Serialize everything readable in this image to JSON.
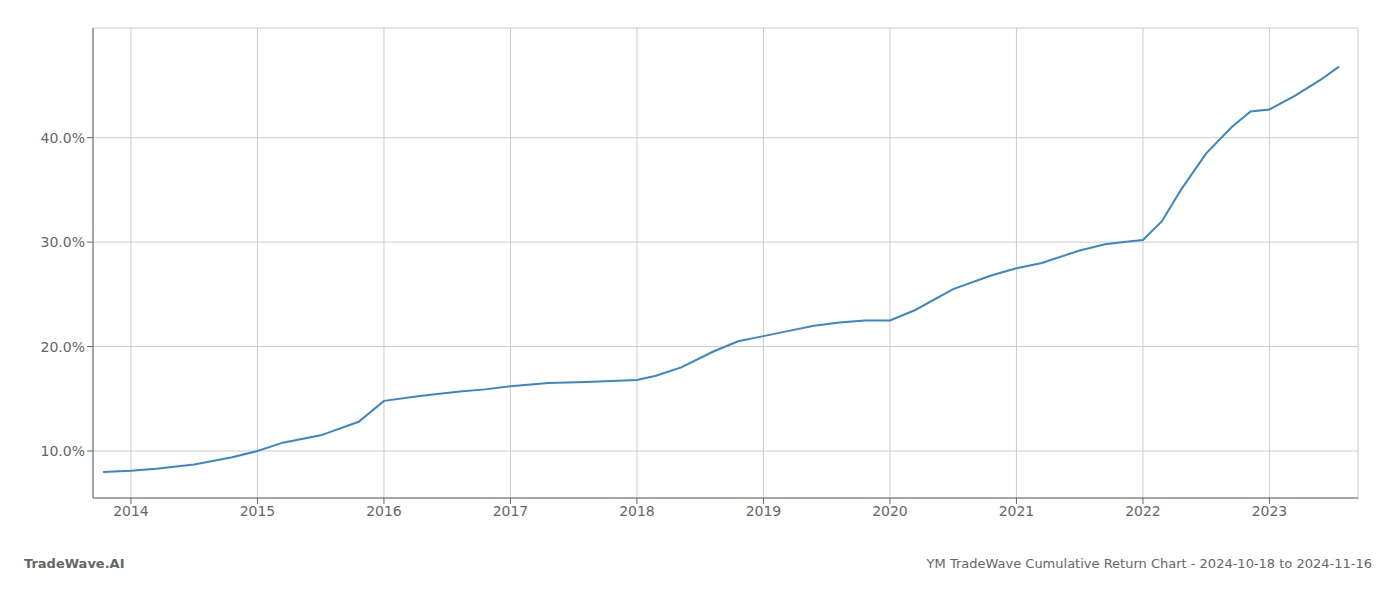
{
  "chart_data": {
    "type": "line",
    "title": "YM TradeWave Cumulative Return Chart - 2024-10-18 to 2024-11-16",
    "annotations": [
      "TradeWave.AI"
    ],
    "x": [
      2013.78,
      2014.0,
      2014.2,
      2014.5,
      2014.8,
      2015.0,
      2015.2,
      2015.5,
      2015.8,
      2016.0,
      2016.3,
      2016.6,
      2016.8,
      2017.0,
      2017.3,
      2017.6,
      2017.8,
      2018.0,
      2018.15,
      2018.35,
      2018.6,
      2018.8,
      2019.0,
      2019.2,
      2019.4,
      2019.6,
      2019.8,
      2020.0,
      2020.2,
      2020.5,
      2020.8,
      2021.0,
      2021.2,
      2021.5,
      2021.7,
      2021.85,
      2022.0,
      2022.15,
      2022.3,
      2022.5,
      2022.7,
      2022.85,
      2023.0,
      2023.2,
      2023.4,
      2023.55
    ],
    "values": [
      8.0,
      8.1,
      8.3,
      8.7,
      9.4,
      10.0,
      10.8,
      11.5,
      12.8,
      14.8,
      15.3,
      15.7,
      15.9,
      16.2,
      16.5,
      16.6,
      16.7,
      16.8,
      17.2,
      18.0,
      19.5,
      20.5,
      21.0,
      21.5,
      22.0,
      22.3,
      22.5,
      22.5,
      23.5,
      25.5,
      26.8,
      27.5,
      28.0,
      29.2,
      29.8,
      30.0,
      30.2,
      32.0,
      35.0,
      38.5,
      41.0,
      42.5,
      42.7,
      44.0,
      45.5,
      46.8
    ],
    "color": "#3a86c8",
    "xlim": [
      2013.7,
      2023.7
    ],
    "ylim": [
      5.5,
      50.5
    ],
    "xticks": [
      2014,
      2015,
      2016,
      2017,
      2018,
      2019,
      2020,
      2021,
      2022,
      2023
    ],
    "yticks": [
      {
        "value": 10.0,
        "label": "10.0%"
      },
      {
        "value": 20.0,
        "label": "20.0%"
      },
      {
        "value": 30.0,
        "label": "30.0%"
      },
      {
        "value": 40.0,
        "label": "40.0%"
      }
    ],
    "grid": true
  }
}
